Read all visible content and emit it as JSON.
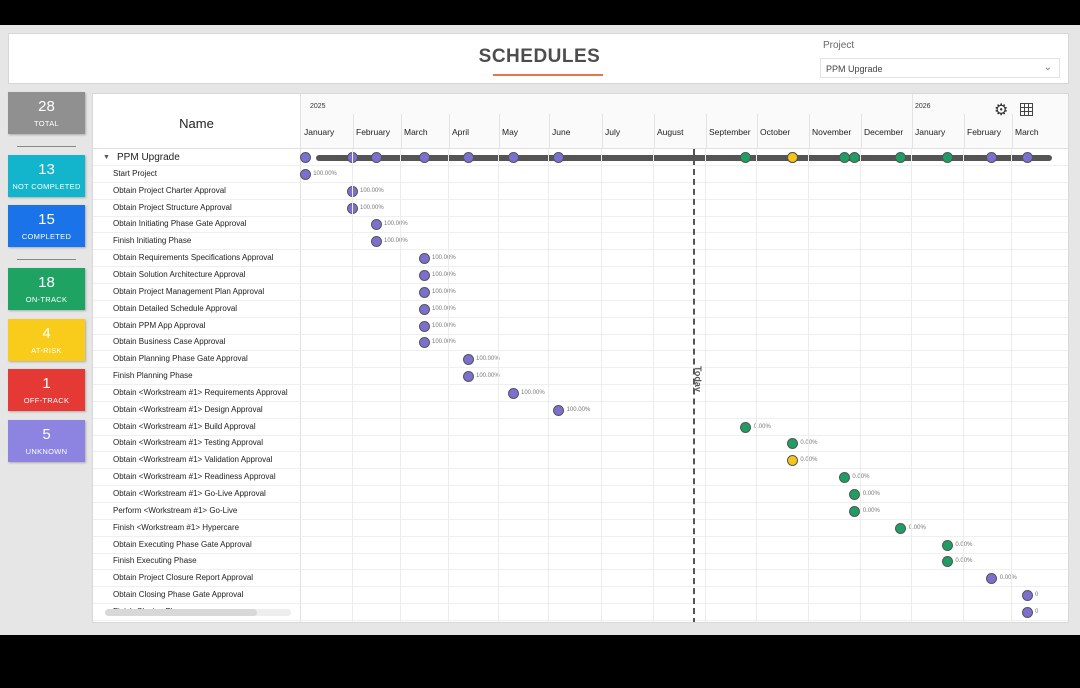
{
  "header": {
    "title": "SCHEDULES",
    "project_label": "Project",
    "project_value": "PPM Upgrade"
  },
  "kpis": [
    {
      "value": "28",
      "label": "TOTAL",
      "color": "#909090"
    },
    {
      "value": "13",
      "label": "NOT COMPLETED",
      "color": "#12b5cb"
    },
    {
      "value": "15",
      "label": "COMPLETED",
      "color": "#1a73e8"
    },
    {
      "value": "18",
      "label": "ON-TRACK",
      "color": "#1ea362"
    },
    {
      "value": "4",
      "label": "AT-RISK",
      "color": "#f9cc1c"
    },
    {
      "value": "1",
      "label": "OFF-TRACK",
      "color": "#e53935"
    },
    {
      "value": "5",
      "label": "UNKNOWN",
      "color": "#8c84e0"
    }
  ],
  "gantt": {
    "name_header": "Name",
    "years": [
      "2025",
      "2026"
    ],
    "months": [
      "January",
      "February",
      "March",
      "April",
      "May",
      "June",
      "July",
      "August",
      "September",
      "October",
      "November",
      "December",
      "January",
      "February",
      "March"
    ],
    "today_label": "Today",
    "group": {
      "label": "PPM Upgrade"
    },
    "status_colors": {
      "complete": "#7b6fd0",
      "ontrack": "#1e9e62",
      "atrisk": "#f5c518"
    },
    "tasks": [
      {
        "label": "Start Project",
        "pct": "100.00%",
        "month": 0.1,
        "status": "complete"
      },
      {
        "label": "Obtain Project Charter Approval",
        "pct": "100.00%",
        "month": 1.0,
        "status": "complete"
      },
      {
        "label": "Obtain Project Structure Approval",
        "pct": "100.00%",
        "month": 1.0,
        "status": "complete"
      },
      {
        "label": "Obtain Initiating Phase Gate Approval",
        "pct": "100.00%",
        "month": 1.5,
        "status": "complete"
      },
      {
        "label": "Finish Initiating Phase",
        "pct": "100.00%",
        "month": 1.5,
        "status": "complete"
      },
      {
        "label": "Obtain Requirements Specifications Approval",
        "pct": "100.00%",
        "month": 2.5,
        "status": "complete"
      },
      {
        "label": "Obtain Solution Architecture Approval",
        "pct": "100.00%",
        "month": 2.5,
        "status": "complete"
      },
      {
        "label": "Obtain Project Management Plan Approval",
        "pct": "100.00%",
        "month": 2.5,
        "status": "complete"
      },
      {
        "label": "Obtain Detailed Schedule Approval",
        "pct": "100.00%",
        "month": 2.5,
        "status": "complete"
      },
      {
        "label": "Obtain PPM App Approval",
        "pct": "100.00%",
        "month": 2.5,
        "status": "complete"
      },
      {
        "label": "Obtain Business Case Approval",
        "pct": "100.00%",
        "month": 2.5,
        "status": "complete"
      },
      {
        "label": "Obtain Planning Phase Gate Approval",
        "pct": "100.00%",
        "month": 3.4,
        "status": "complete"
      },
      {
        "label": "Finish Planning Phase",
        "pct": "100.00%",
        "month": 3.4,
        "status": "complete"
      },
      {
        "label": "Obtain <Workstream #1> Requirements Approval",
        "pct": "100.00%",
        "month": 4.3,
        "status": "complete"
      },
      {
        "label": "Obtain <Workstream #1> Design Approval",
        "pct": "100.00%",
        "month": 5.2,
        "status": "complete"
      },
      {
        "label": "Obtain <Workstream #1> Build Approval",
        "pct": "0.00%",
        "month": 8.8,
        "status": "ontrack"
      },
      {
        "label": "Obtain <Workstream #1> Testing Approval",
        "pct": "0.00%",
        "month": 9.7,
        "status": "ontrack"
      },
      {
        "label": "Obtain <Workstream #1> Validation Approval",
        "pct": "0.00%",
        "month": 9.7,
        "status": "atrisk"
      },
      {
        "label": "Obtain <Workstream #1> Readiness Approval",
        "pct": "0.00%",
        "month": 10.7,
        "status": "ontrack"
      },
      {
        "label": "Obtain <Workstream #1> Go-Live Approval",
        "pct": "0.00%",
        "month": 10.9,
        "status": "ontrack"
      },
      {
        "label": "Perform <Workstream #1> Go-Live",
        "pct": "0.00%",
        "month": 10.9,
        "status": "ontrack"
      },
      {
        "label": "Finish <Workstream #1> Hypercare",
        "pct": "0.00%",
        "month": 11.8,
        "status": "ontrack"
      },
      {
        "label": "Obtain Executing Phase Gate Approval",
        "pct": "0.00%",
        "month": 12.7,
        "status": "ontrack"
      },
      {
        "label": "Finish Executing Phase",
        "pct": "0.00%",
        "month": 12.7,
        "status": "ontrack"
      },
      {
        "label": "Obtain Project Closure Report Approval",
        "pct": "0.00%",
        "month": 13.6,
        "status": "complete"
      },
      {
        "label": "Obtain Closing Phase Gate Approval",
        "pct": "0",
        "month": 14.4,
        "status": "complete"
      },
      {
        "label": "Finish Closing Phase",
        "pct": "0",
        "month": 14.4,
        "status": "complete"
      }
    ]
  }
}
